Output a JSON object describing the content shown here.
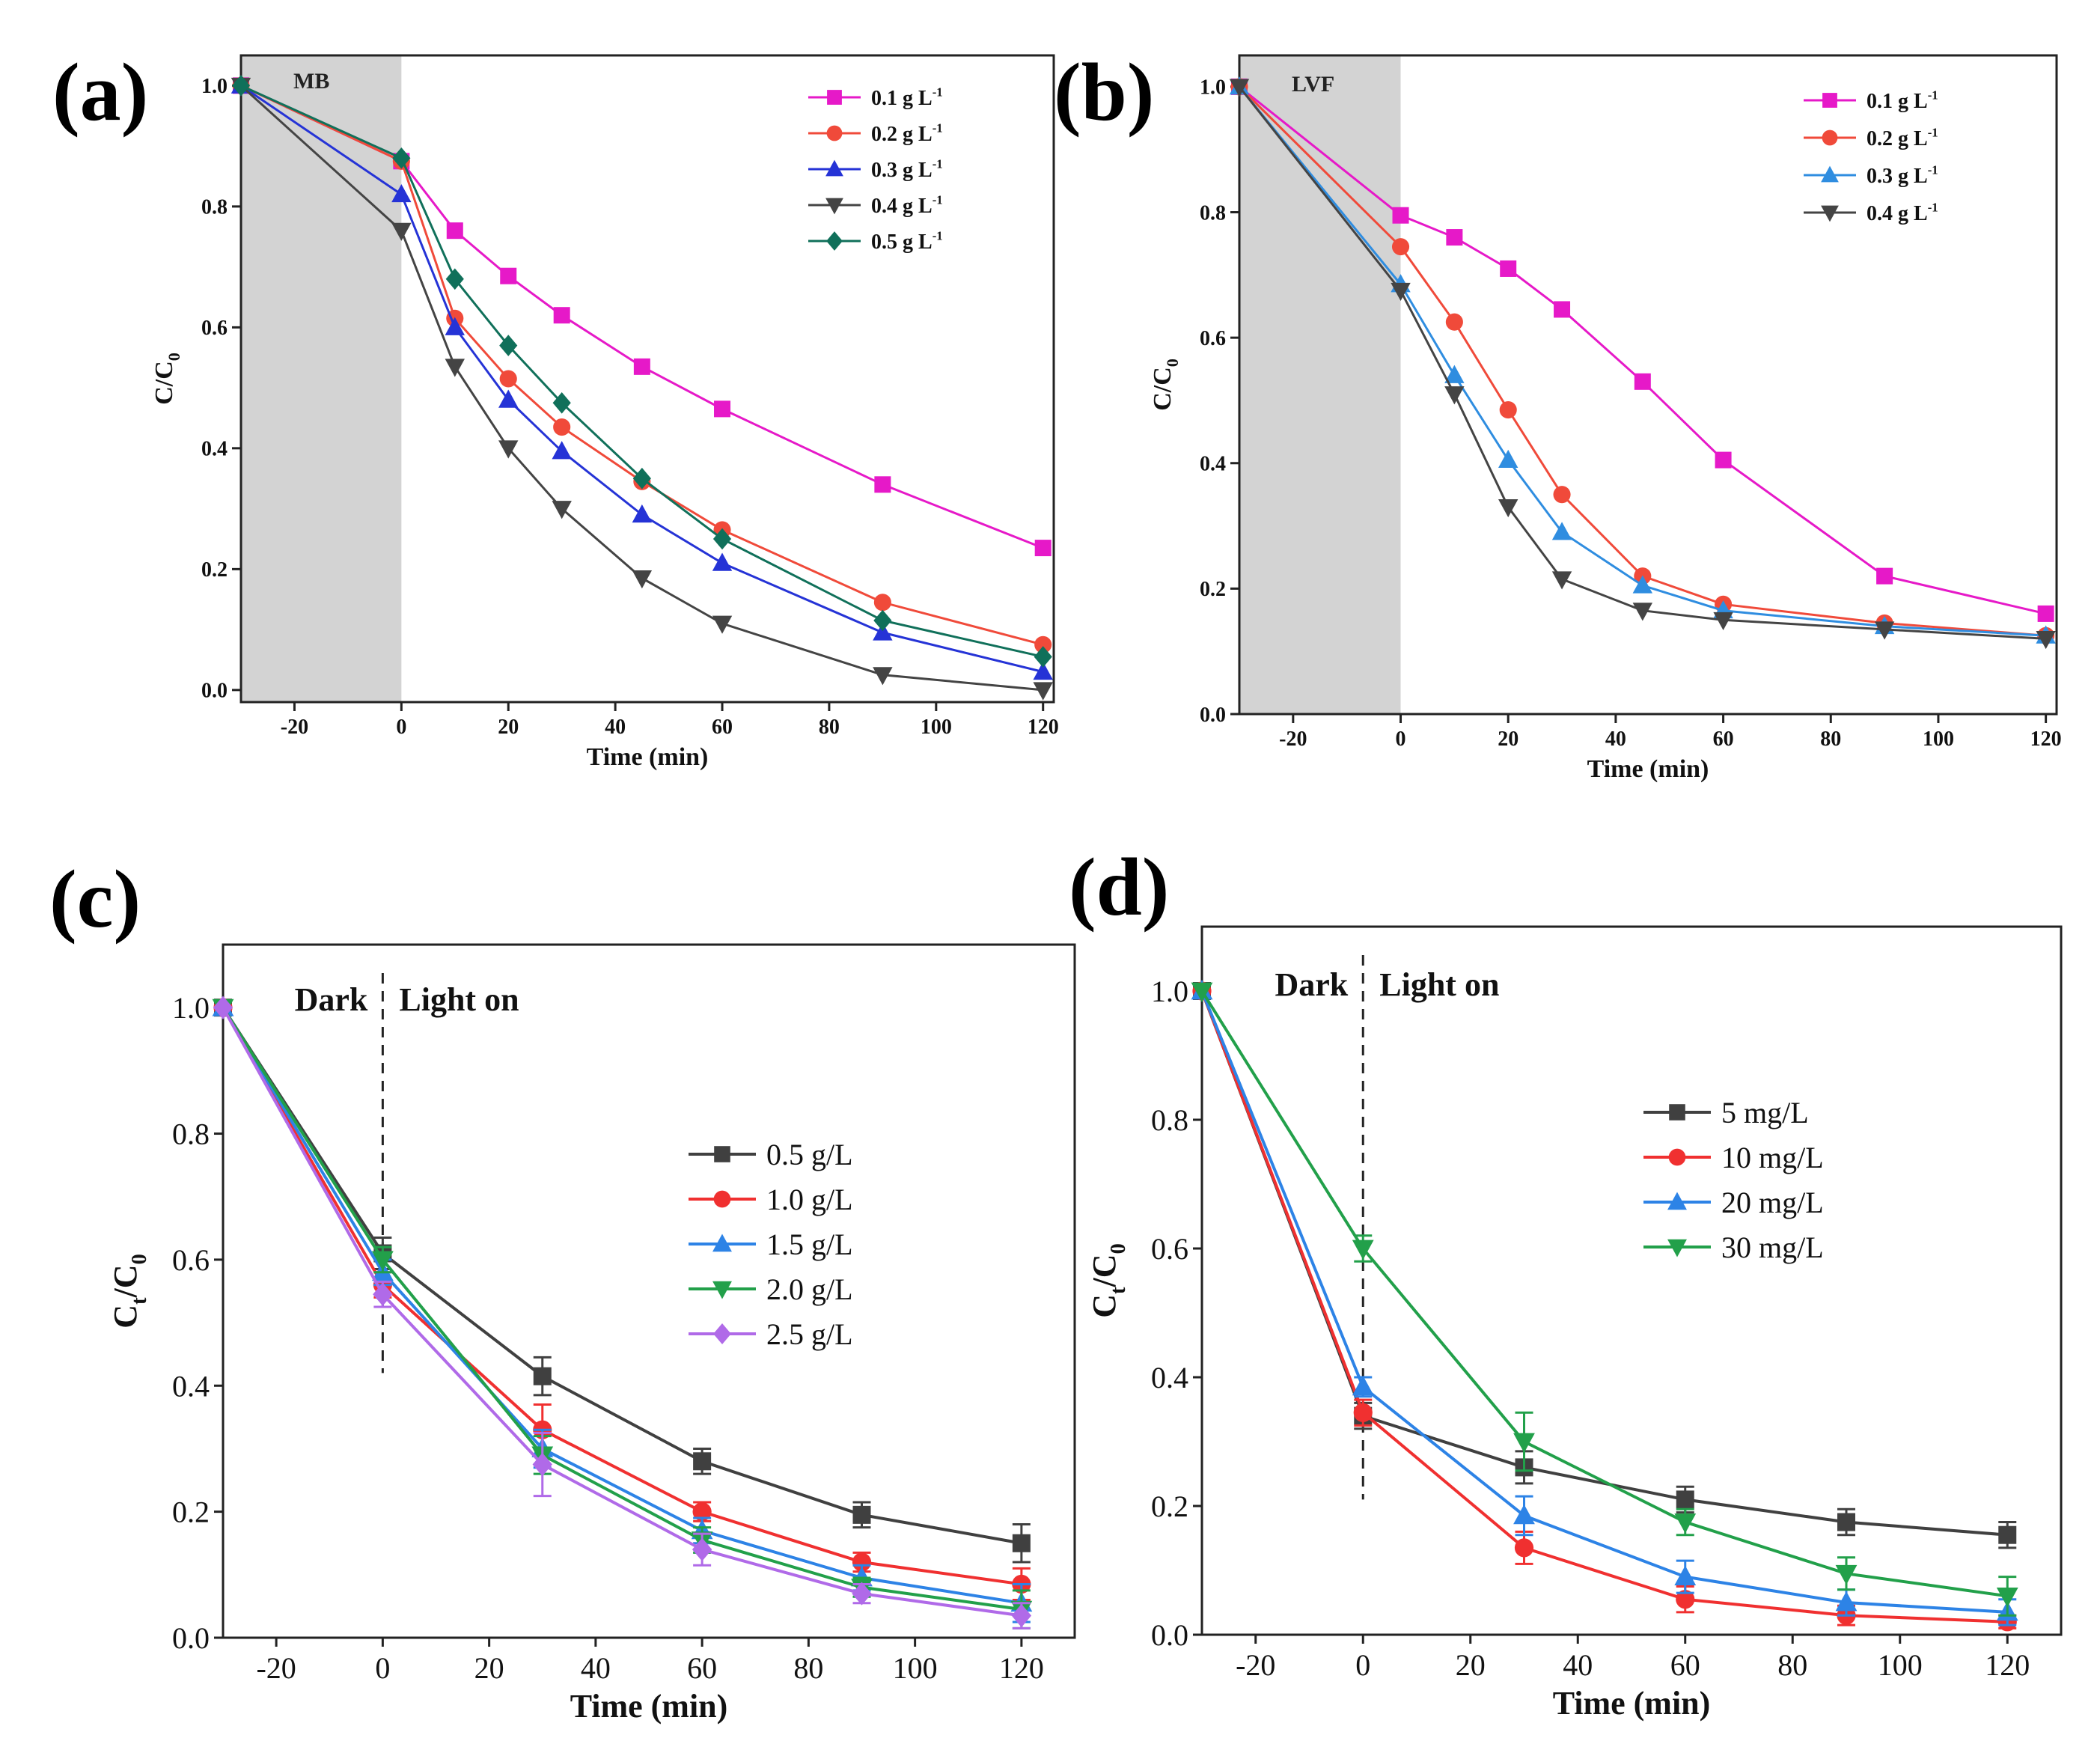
{
  "chart_data": [
    {
      "id": "a",
      "type": "line",
      "panel_label": "(a)",
      "region_label": "MB",
      "shade_range": [
        -30,
        0
      ],
      "region_style": "shade",
      "xlabel": "Time (min)",
      "ylabel": "C/C",
      "ylabel_sub": "0",
      "xlim": [
        -30,
        122
      ],
      "ylim": [
        -0.02,
        1.05
      ],
      "xticks": [
        -20,
        0,
        20,
        40,
        60,
        80,
        100,
        120
      ],
      "yticks": [
        0.0,
        0.2,
        0.4,
        0.6,
        0.8,
        1.0
      ],
      "ytick_labels": [
        "0.0",
        "0.2",
        "0.4",
        "0.6",
        "0.8",
        "1.0"
      ],
      "legend_position": "top-right",
      "x": [
        -30,
        0,
        10,
        20,
        30,
        45,
        60,
        90,
        120
      ],
      "series": [
        {
          "name": "0.1 g L",
          "unit_sup": "-1",
          "color": "#e619c8",
          "marker": "square",
          "values": [
            1.0,
            0.875,
            0.76,
            0.685,
            0.62,
            0.535,
            0.465,
            0.34,
            0.235
          ]
        },
        {
          "name": "0.2 g L",
          "unit_sup": "-1",
          "color": "#f04a3a",
          "marker": "circle",
          "values": [
            1.0,
            0.875,
            0.615,
            0.515,
            0.435,
            0.345,
            0.265,
            0.145,
            0.075
          ]
        },
        {
          "name": "0.3 g L",
          "unit_sup": "-1",
          "color": "#2533d6",
          "marker": "triangle-up",
          "values": [
            1.0,
            0.82,
            0.6,
            0.48,
            0.395,
            0.29,
            0.21,
            0.095,
            0.03
          ]
        },
        {
          "name": "0.4 g L",
          "unit_sup": "-1",
          "color": "#444444",
          "marker": "triangle-down",
          "values": [
            1.0,
            0.76,
            0.535,
            0.4,
            0.3,
            0.185,
            0.11,
            0.025,
            0.0
          ]
        },
        {
          "name": "0.5 g L",
          "unit_sup": "-1",
          "color": "#10705a",
          "marker": "diamond",
          "values": [
            1.0,
            0.88,
            0.68,
            0.57,
            0.475,
            0.35,
            0.25,
            0.115,
            0.055
          ]
        }
      ]
    },
    {
      "id": "b",
      "type": "line",
      "panel_label": "(b)",
      "region_label": "LVF",
      "shade_range": [
        -30,
        0
      ],
      "region_style": "shade",
      "xlabel": "Time (min)",
      "ylabel": "C/C",
      "ylabel_sub": "0",
      "xlim": [
        -30,
        122
      ],
      "ylim": [
        0.0,
        1.05
      ],
      "xticks": [
        -20,
        0,
        20,
        40,
        60,
        80,
        100,
        120
      ],
      "yticks": [
        0.0,
        0.2,
        0.4,
        0.6,
        0.8,
        1.0
      ],
      "ytick_labels": [
        "0.0",
        "0.2",
        "0.4",
        "0.6",
        "0.8",
        "1.0"
      ],
      "legend_position": "top-right",
      "x": [
        -30,
        0,
        10,
        20,
        30,
        45,
        60,
        90,
        120
      ],
      "series": [
        {
          "name": "0.1 g L",
          "unit_sup": "-1",
          "color": "#e619c8",
          "marker": "square",
          "values": [
            1.0,
            0.795,
            0.76,
            0.71,
            0.645,
            0.53,
            0.405,
            0.22,
            0.16
          ]
        },
        {
          "name": "0.2 g L",
          "unit_sup": "-1",
          "color": "#f04a3a",
          "marker": "circle",
          "values": [
            1.0,
            0.745,
            0.625,
            0.485,
            0.35,
            0.22,
            0.175,
            0.145,
            0.125
          ]
        },
        {
          "name": "0.3 g L",
          "unit_sup": "-1",
          "color": "#2f8de0",
          "marker": "triangle-up",
          "values": [
            1.0,
            0.685,
            0.54,
            0.405,
            0.29,
            0.205,
            0.165,
            0.14,
            0.125
          ]
        },
        {
          "name": "0.4 g L",
          "unit_sup": "-1",
          "color": "#444444",
          "marker": "triangle-down",
          "values": [
            1.0,
            0.675,
            0.51,
            0.33,
            0.215,
            0.165,
            0.15,
            0.135,
            0.12
          ]
        }
      ]
    },
    {
      "id": "c",
      "type": "line",
      "panel_label": "(c)",
      "region_label_left": "Dark",
      "region_label_right": "Light on",
      "region_style": "dashed",
      "xlabel": "Time (min)",
      "ylabel": "C",
      "ylabel_sub": "t",
      "ylabel_mid": "/C",
      "ylabel_sub2": "0",
      "xlim": [
        -30,
        130
      ],
      "ylim": [
        0.0,
        1.1
      ],
      "xticks": [
        -20,
        0,
        20,
        40,
        60,
        80,
        100,
        120
      ],
      "yticks": [
        0.0,
        0.2,
        0.4,
        0.6,
        0.8,
        1.0
      ],
      "ytick_labels": [
        "0.0",
        "0.2",
        "0.4",
        "0.6",
        "0.8",
        "1.0"
      ],
      "legend_position": "center-right",
      "x": [
        -30,
        0,
        30,
        60,
        90,
        120
      ],
      "series": [
        {
          "name": "0.5 g/L",
          "color": "#404040",
          "marker": "square",
          "values": [
            1.0,
            0.61,
            0.415,
            0.28,
            0.195,
            0.15
          ],
          "errors": [
            0,
            0.025,
            0.03,
            0.02,
            0.02,
            0.03
          ]
        },
        {
          "name": "1.0 g/L",
          "color": "#f03030",
          "marker": "circle",
          "values": [
            1.0,
            0.56,
            0.33,
            0.2,
            0.12,
            0.085
          ],
          "errors": [
            0,
            0.02,
            0.04,
            0.015,
            0.015,
            0.025
          ]
        },
        {
          "name": "1.5 g/L",
          "color": "#2d83e6",
          "marker": "triangle-up",
          "values": [
            1.0,
            0.58,
            0.3,
            0.17,
            0.095,
            0.055
          ],
          "errors": [
            0,
            0.02,
            0.03,
            0.02,
            0.02,
            0.03
          ]
        },
        {
          "name": "2.0 g/L",
          "color": "#22a04a",
          "marker": "triangle-down",
          "values": [
            1.0,
            0.6,
            0.29,
            0.155,
            0.08,
            0.045
          ],
          "errors": [
            0,
            0.02,
            0.03,
            0.02,
            0.015,
            0.03
          ]
        },
        {
          "name": "2.5 g/L",
          "color": "#b06ae8",
          "marker": "diamond",
          "values": [
            1.0,
            0.545,
            0.275,
            0.14,
            0.07,
            0.035
          ],
          "errors": [
            0,
            0.02,
            0.05,
            0.025,
            0.015,
            0.02
          ]
        }
      ]
    },
    {
      "id": "d",
      "type": "line",
      "panel_label": "(d)",
      "region_label_left": "Dark",
      "region_label_right": "Light on",
      "region_style": "dashed",
      "xlabel": "Time (min)",
      "ylabel": "C",
      "ylabel_sub": "t",
      "ylabel_mid": "/C",
      "ylabel_sub2": "0",
      "xlim": [
        -30,
        130
      ],
      "ylim": [
        0.0,
        1.1
      ],
      "xticks": [
        -20,
        0,
        20,
        40,
        60,
        80,
        100,
        120
      ],
      "yticks": [
        0.0,
        0.2,
        0.4,
        0.6,
        0.8,
        1.0
      ],
      "ytick_labels": [
        "0.0",
        "0.2",
        "0.4",
        "0.6",
        "0.8",
        "1.0"
      ],
      "legend_position": "center-right",
      "x": [
        -30,
        0,
        30,
        60,
        90,
        120
      ],
      "series": [
        {
          "name": "5 mg/L",
          "color": "#404040",
          "marker": "square",
          "values": [
            1.0,
            0.34,
            0.26,
            0.21,
            0.175,
            0.155
          ],
          "errors": [
            0,
            0.02,
            0.025,
            0.02,
            0.02,
            0.02
          ]
        },
        {
          "name": "10 mg/L",
          "color": "#f03030",
          "marker": "circle",
          "values": [
            1.0,
            0.345,
            0.135,
            0.055,
            0.03,
            0.02
          ],
          "errors": [
            0,
            0.02,
            0.025,
            0.02,
            0.015,
            0.01
          ]
        },
        {
          "name": "20 mg/L",
          "color": "#2d83e6",
          "marker": "triangle-up",
          "values": [
            1.0,
            0.385,
            0.185,
            0.09,
            0.05,
            0.035
          ],
          "errors": [
            0,
            0.015,
            0.03,
            0.025,
            0.02,
            0.02
          ]
        },
        {
          "name": "30 mg/L",
          "color": "#22a04a",
          "marker": "triangle-down",
          "values": [
            1.0,
            0.6,
            0.3,
            0.175,
            0.095,
            0.06
          ],
          "errors": [
            0,
            0.02,
            0.045,
            0.02,
            0.025,
            0.03
          ]
        }
      ]
    }
  ]
}
